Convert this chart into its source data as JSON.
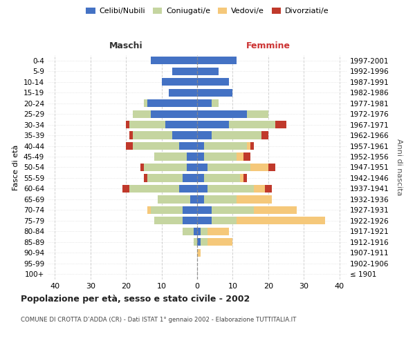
{
  "age_groups": [
    "100+",
    "95-99",
    "90-94",
    "85-89",
    "80-84",
    "75-79",
    "70-74",
    "65-69",
    "60-64",
    "55-59",
    "50-54",
    "45-49",
    "40-44",
    "35-39",
    "30-34",
    "25-29",
    "20-24",
    "15-19",
    "10-14",
    "5-9",
    "0-4"
  ],
  "birth_years": [
    "≤ 1901",
    "1902-1906",
    "1907-1911",
    "1912-1916",
    "1917-1921",
    "1922-1926",
    "1927-1931",
    "1932-1936",
    "1937-1941",
    "1942-1946",
    "1947-1951",
    "1952-1956",
    "1957-1961",
    "1962-1966",
    "1967-1971",
    "1972-1976",
    "1977-1981",
    "1982-1986",
    "1987-1991",
    "1992-1996",
    "1997-2001"
  ],
  "colors": {
    "celibi": "#4472c4",
    "coniugati": "#c5d5a0",
    "vedovi": "#f5c87a",
    "divorziati": "#c0392b"
  },
  "maschi": {
    "celibi": [
      0,
      0,
      0,
      0,
      1,
      4,
      4,
      2,
      5,
      4,
      3,
      3,
      5,
      7,
      9,
      13,
      14,
      8,
      10,
      7,
      13
    ],
    "coniugati": [
      0,
      0,
      0,
      1,
      3,
      8,
      9,
      9,
      14,
      10,
      12,
      9,
      13,
      11,
      10,
      5,
      1,
      0,
      0,
      0,
      0
    ],
    "vedovi": [
      0,
      0,
      0,
      0,
      0,
      0,
      1,
      0,
      0,
      0,
      0,
      0,
      0,
      0,
      0,
      0,
      0,
      0,
      0,
      0,
      0
    ],
    "divorziati": [
      0,
      0,
      0,
      0,
      0,
      0,
      0,
      0,
      2,
      1,
      1,
      0,
      2,
      1,
      1,
      0,
      0,
      0,
      0,
      0,
      0
    ]
  },
  "femmine": {
    "celibi": [
      0,
      0,
      0,
      1,
      1,
      4,
      4,
      2,
      3,
      2,
      3,
      2,
      2,
      4,
      9,
      14,
      4,
      10,
      9,
      6,
      11
    ],
    "coniugati": [
      0,
      0,
      0,
      2,
      2,
      7,
      12,
      9,
      13,
      10,
      12,
      9,
      12,
      14,
      13,
      6,
      2,
      0,
      0,
      0,
      0
    ],
    "vedovi": [
      0,
      0,
      1,
      7,
      6,
      25,
      12,
      10,
      3,
      1,
      5,
      2,
      1,
      0,
      0,
      0,
      0,
      0,
      0,
      0,
      0
    ],
    "divorziati": [
      0,
      0,
      0,
      0,
      0,
      0,
      0,
      0,
      2,
      1,
      2,
      2,
      1,
      2,
      3,
      0,
      0,
      0,
      0,
      0,
      0
    ]
  },
  "xlim": 42,
  "title": "Popolazione per età, sesso e stato civile - 2002",
  "subtitle": "COMUNE DI CROTTA D’ADDA (CR) - Dati ISTAT 1° gennaio 2002 - Elaborazione TUTTITALIA.IT",
  "ylabel_left": "Fasce di età",
  "ylabel_right": "Anni di nascita",
  "xlabel_maschi": "Maschi",
  "xlabel_femmine": "Femmine",
  "legend_labels": [
    "Celibi/Nubili",
    "Coniugati/e",
    "Vedovi/e",
    "Divorziati/e"
  ],
  "background_color": "#ffffff",
  "grid_color": "#cccccc"
}
